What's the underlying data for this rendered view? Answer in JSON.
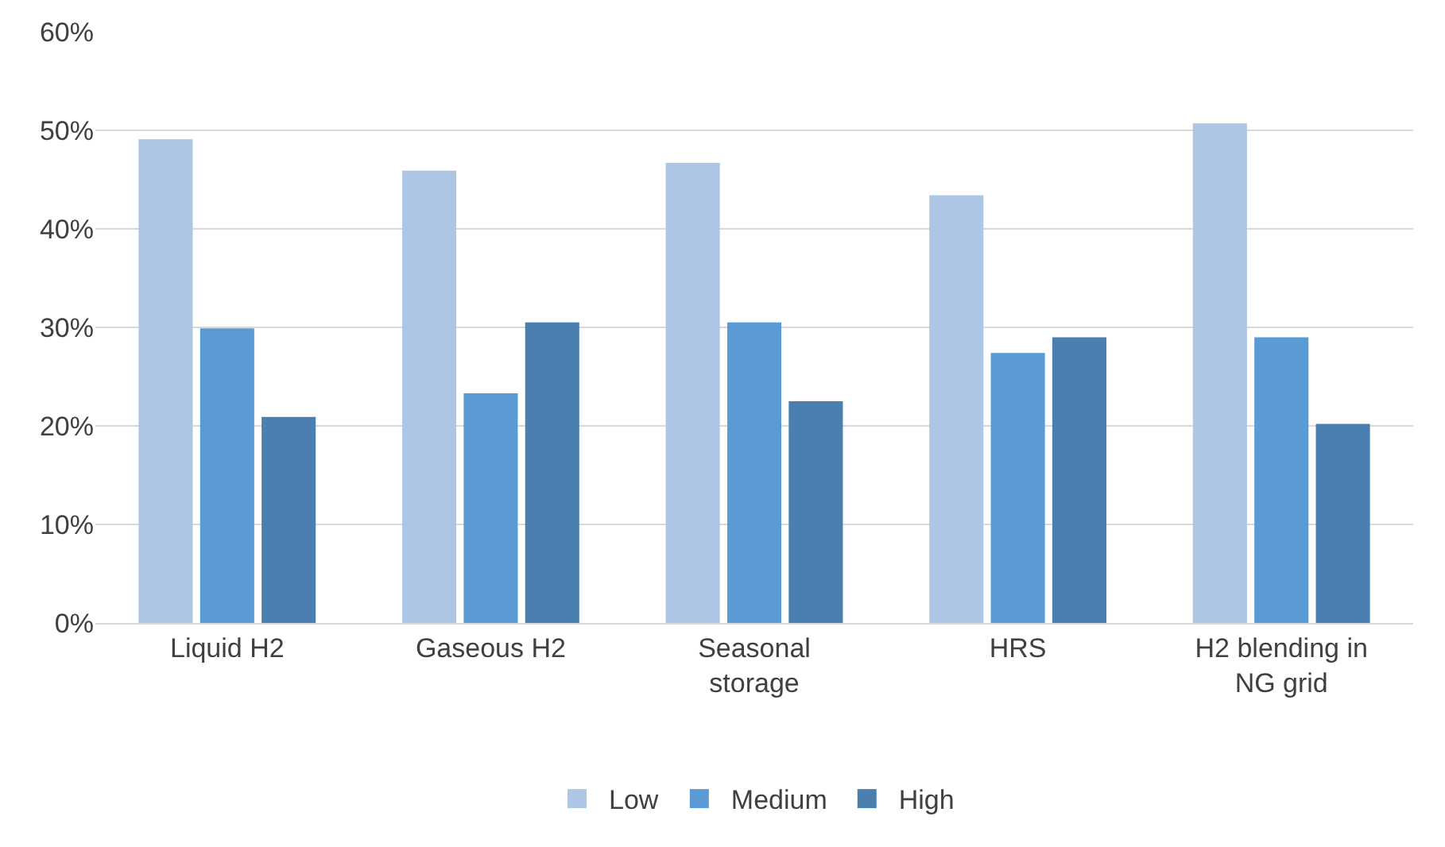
{
  "chart_data": {
    "type": "bar",
    "categories": [
      "Liquid H2",
      "Gaseous H2",
      "Seasonal storage",
      "HRS",
      "H2 blending in NG grid"
    ],
    "series": [
      {
        "name": "Low",
        "color": "#adc6e6",
        "values": [
          49.1,
          45.9,
          46.7,
          43.4,
          50.7
        ]
      },
      {
        "name": "Medium",
        "color": "#5b9bd5",
        "values": [
          29.9,
          23.3,
          30.5,
          27.4,
          29.0
        ]
      },
      {
        "name": "High",
        "color": "#4a7fb0",
        "values": [
          20.9,
          30.5,
          22.5,
          29.0,
          20.2
        ]
      }
    ],
    "ylim": [
      0,
      60
    ],
    "yticks": [
      {
        "value": 0,
        "label": "0%"
      },
      {
        "value": 10,
        "label": "10%"
      },
      {
        "value": 20,
        "label": "20%"
      },
      {
        "value": 30,
        "label": "30%"
      },
      {
        "value": 40,
        "label": "40%"
      },
      {
        "value": 50,
        "label": "50%"
      },
      {
        "value": 60,
        "label": "60%"
      }
    ],
    "grid": "y",
    "legend": "bottom"
  }
}
